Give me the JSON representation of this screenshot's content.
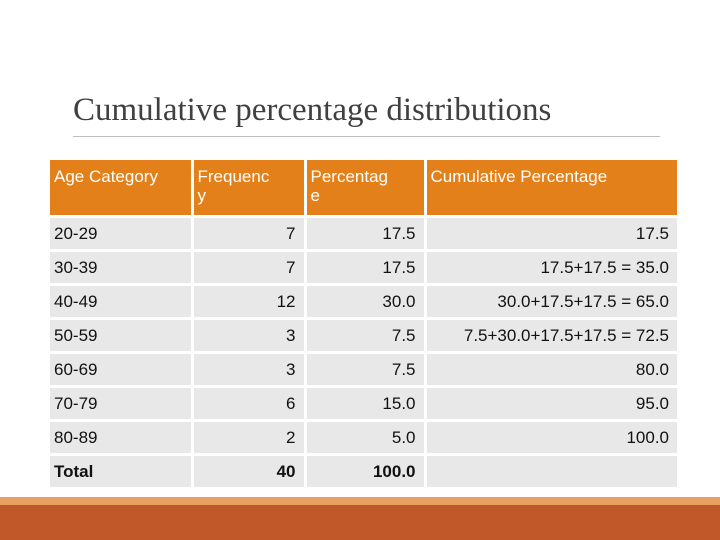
{
  "title": "Cumulative percentage distributions",
  "table": {
    "header": [
      "Age Category",
      "Frequency",
      "Percentage",
      "Cumulative Percentage"
    ],
    "rows": [
      [
        "20-29",
        "7",
        "17.5",
        "17.5"
      ],
      [
        "30-39",
        "7",
        "17.5",
        "17.5+17.5 = 35.0"
      ],
      [
        "40-49",
        "12",
        "30.0",
        "30.0+17.5+17.5 = 65.0"
      ],
      [
        "50-59",
        "3",
        "7.5",
        "7.5+30.0+17.5+17.5 = 72.5"
      ],
      [
        "60-69",
        "3",
        "7.5",
        "80.0"
      ],
      [
        "70-79",
        "6",
        "15.0",
        "95.0"
      ],
      [
        "80-89",
        "2",
        "5.0",
        "100.0"
      ],
      [
        "Total",
        "40",
        "100.0",
        ""
      ]
    ]
  }
}
